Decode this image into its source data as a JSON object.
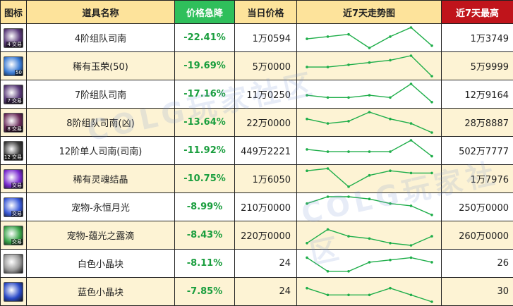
{
  "headers": {
    "icon": "图标",
    "name": "道具名称",
    "drop": "价格急降",
    "price": "当日价格",
    "trend": "近7天走势图",
    "max": "近7天最高"
  },
  "colors": {
    "header_bg": "#fde39b",
    "drop_header_bg": "#2fbf5b",
    "max_header_bg": "#c0141b",
    "row_alt_bg": "#fdf3d4",
    "drop_text": "#1a9e3e",
    "trend_line": "#1fae4a"
  },
  "rows": [
    {
      "name": "4阶组队司南",
      "drop": "-22.41%",
      "price": "1万0594",
      "max": "1万3749",
      "icon": "compass-icon",
      "icon_tag": "4 交易",
      "icon_color": "#5a3a7a",
      "trend": [
        5,
        4,
        3,
        9,
        4,
        0,
        8
      ]
    },
    {
      "name": "稀有玉荣(50)",
      "drop": "-19.69%",
      "price": "5万0000",
      "max": "5万9999",
      "icon": "jade-orb-icon",
      "icon_tag": "50",
      "icon_color": "#3a7bd5",
      "trend": [
        5,
        5,
        4,
        3,
        2,
        0,
        9
      ]
    },
    {
      "name": "7阶组队司南",
      "drop": "-17.16%",
      "price": "11万0250",
      "max": "12万9164",
      "icon": "compass-icon",
      "icon_tag": "7 交易",
      "icon_color": "#5a3a7a",
      "trend": [
        5,
        6,
        6,
        5,
        6,
        0,
        8
      ]
    },
    {
      "name": "8阶组队司南(凶)",
      "drop": "-13.64%",
      "price": "22万0000",
      "max": "28万8887",
      "icon": "compass-icon",
      "icon_tag": "8 交易",
      "icon_color": "#6a2a5a",
      "trend": [
        3,
        5,
        4,
        0,
        3,
        5,
        9
      ]
    },
    {
      "name": "12阶单人司南(司南)",
      "drop": "-11.92%",
      "price": "449万2221",
      "max": "502万7777",
      "icon": "compass-icon",
      "icon_tag": "12 交易",
      "icon_color": "#3a3a3a",
      "trend": [
        4,
        5,
        5,
        5,
        5,
        0,
        7
      ]
    },
    {
      "name": "稀有灵魂结晶",
      "drop": "-10.75%",
      "price": "1万6050",
      "max": "1万7976",
      "icon": "soul-crystal-icon",
      "icon_tag": "交易",
      "icon_color": "#7a2ad0",
      "trend": [
        1,
        0,
        8,
        3,
        1,
        2,
        2
      ]
    },
    {
      "name": "宠物-永恒月光",
      "drop": "-8.99%",
      "price": "210万0000",
      "max": "250万0000",
      "icon": "moon-pet-icon",
      "icon_tag": "交易",
      "icon_color": "#3a5ad8",
      "trend": [
        3,
        0,
        0,
        1,
        3,
        4,
        8
      ]
    },
    {
      "name": "宠物-蕴光之露滴",
      "drop": "-8.43%",
      "price": "220万0000",
      "max": "260万0000",
      "icon": "dew-pet-icon",
      "icon_tag": "交易",
      "icon_color": "#3aa54a",
      "trend": [
        8,
        2,
        5,
        6,
        8,
        9,
        5
      ]
    },
    {
      "name": "白色小晶块",
      "drop": "-8.11%",
      "price": "24",
      "max": "26",
      "icon": "white-crystal-icon",
      "icon_tag": "",
      "icon_color": "#9a9a9a",
      "trend": [
        2,
        8,
        8,
        4,
        3,
        2,
        4
      ]
    },
    {
      "name": "蓝色小晶块",
      "drop": "-7.85%",
      "price": "24",
      "max": "30",
      "icon": "blue-crystal-icon",
      "icon_tag": "",
      "icon_color": "#2a4ac8",
      "trend": [
        3,
        6,
        6,
        6,
        3,
        6,
        9
      ]
    }
  ]
}
